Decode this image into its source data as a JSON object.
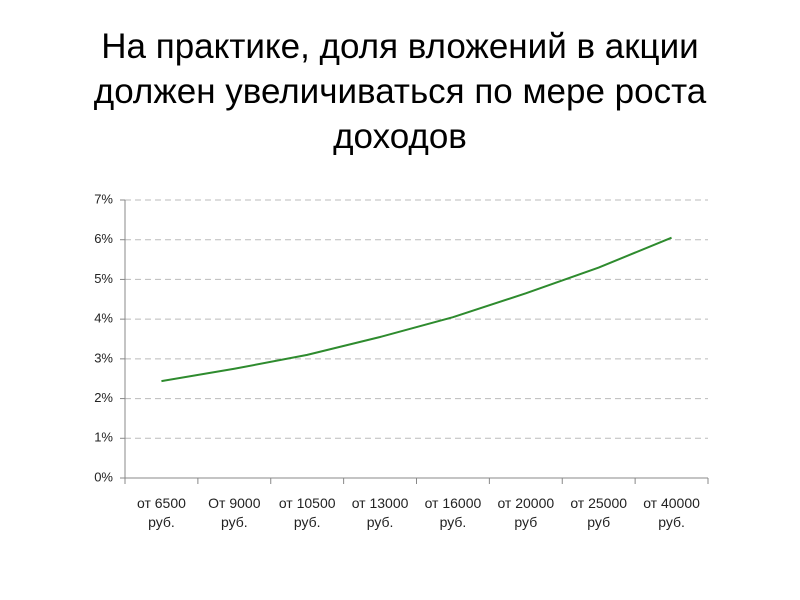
{
  "chart_data": {
    "type": "line",
    "title": "На практике, доля вложений в акции должен увеличиваться по мере роста доходов",
    "categories": [
      "от 6500 руб.",
      "От 9000 руб.",
      "от 10500 руб.",
      "от 13000 руб.",
      "от 16000 руб.",
      "от 20000 руб",
      "от 25000 руб",
      "от 40000 руб."
    ],
    "series": [
      {
        "color": "#2e8b2e",
        "values": [
          2.44,
          2.75,
          3.1,
          3.55,
          4.05,
          4.65,
          5.3,
          6.05
        ]
      }
    ],
    "ylim": [
      0,
      7
    ],
    "yticks": [
      {
        "value": 0,
        "label": "0%"
      },
      {
        "value": 1,
        "label": "1%"
      },
      {
        "value": 2,
        "label": "2%"
      },
      {
        "value": 3,
        "label": "3%"
      },
      {
        "value": 4,
        "label": "4%"
      },
      {
        "value": 5,
        "label": "5%"
      },
      {
        "value": 6,
        "label": "6%"
      },
      {
        "value": 7,
        "label": "7%"
      }
    ],
    "grid": true
  }
}
